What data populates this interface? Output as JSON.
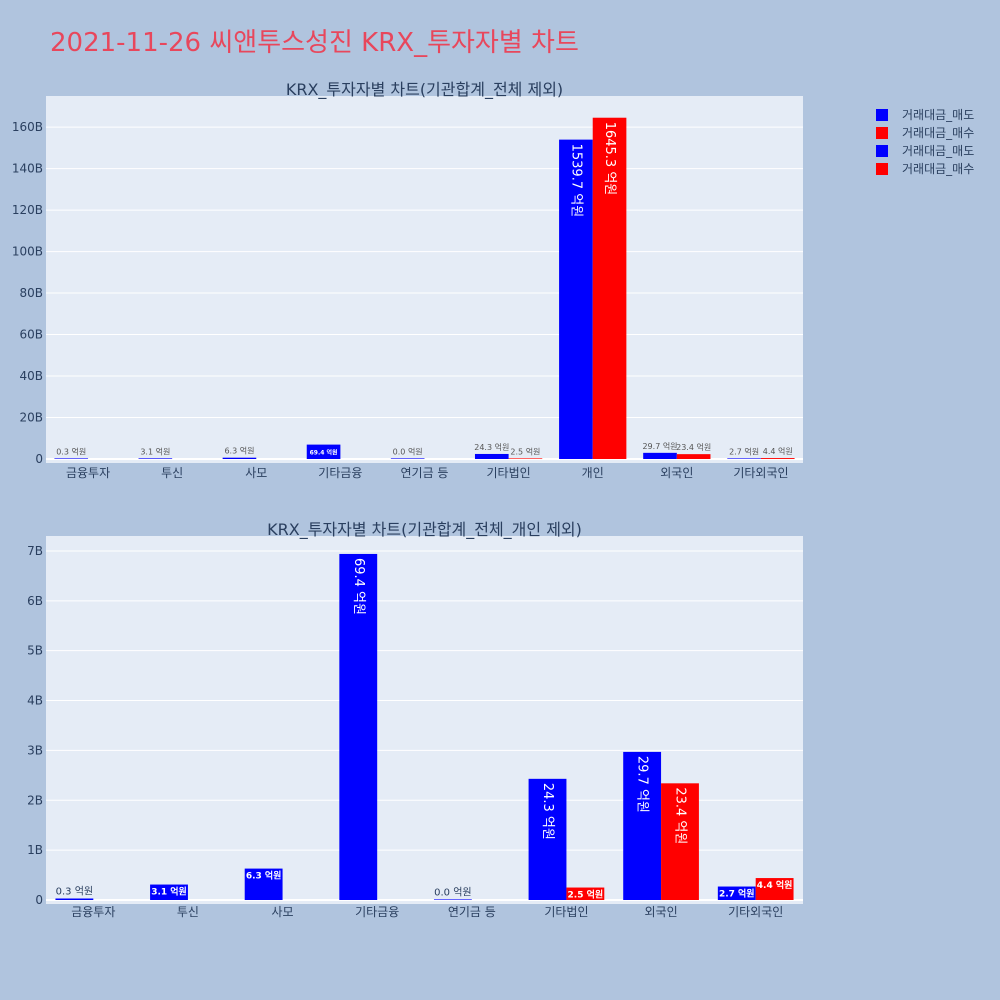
{
  "title": "2021-11-26 씨앤투스성진 KRX_투자자별 차트",
  "colors": {
    "sell": "#0000ff",
    "buy": "#ff0000",
    "plot_bg": "#e5ecf6",
    "page_bg": "#b0c4de",
    "title": "#e8475c"
  },
  "legend": {
    "position": "top-right",
    "items": [
      {
        "label": "거래대금_매도",
        "color": "#0000ff"
      },
      {
        "label": "거래대금_매수",
        "color": "#ff0000"
      },
      {
        "label": "거래대금_매도",
        "color": "#0000ff"
      },
      {
        "label": "거래대금_매수",
        "color": "#ff0000"
      }
    ]
  },
  "chart_data": [
    {
      "type": "bar",
      "title": "KRX_투자자별 차트(기관합계_전체 제외)",
      "categories": [
        "금융투자",
        "투신",
        "사모",
        "기타금융",
        "연기금 등",
        "기타법인",
        "개인",
        "외국인",
        "기타외국인"
      ],
      "ylim": [
        0,
        175000000000
      ],
      "yticks": [
        0,
        20000000000,
        40000000000,
        60000000000,
        80000000000,
        100000000000,
        120000000000,
        140000000000,
        160000000000
      ],
      "ytick_labels": [
        "0",
        "20B",
        "40B",
        "60B",
        "80B",
        "100B",
        "120B",
        "140B",
        "160B"
      ],
      "grid": true,
      "series": [
        {
          "name": "거래대금_매도",
          "color": "#0000ff",
          "values": [
            30000000,
            310000000,
            630000000,
            6940000000,
            0,
            2430000000,
            153970000000,
            2970000000,
            270000000
          ],
          "labels": [
            "0.3 억원",
            "3.1 억원",
            "6.3 억원",
            "69.4 억원",
            "0.0 억원",
            "24.3 억원",
            "1539.7 억원",
            "29.7 억원",
            "2.7 억원"
          ]
        },
        {
          "name": "거래대금_매수",
          "color": "#ff0000",
          "values": [
            null,
            null,
            null,
            null,
            null,
            250000000,
            164530000000,
            2340000000,
            440000000
          ],
          "labels": [
            null,
            null,
            null,
            null,
            null,
            "2.5 억원",
            "1645.3 억원",
            "23.4 억원",
            "4.4 억원"
          ]
        }
      ]
    },
    {
      "type": "bar",
      "title": "KRX_투자자별 차트(기관합계_전체_개인 제외)",
      "categories": [
        "금융투자",
        "투신",
        "사모",
        "기타금융",
        "연기금 등",
        "기타법인",
        "외국인",
        "기타외국인"
      ],
      "ylim": [
        0,
        7300000000
      ],
      "yticks": [
        0,
        1000000000,
        2000000000,
        3000000000,
        4000000000,
        5000000000,
        6000000000,
        7000000000
      ],
      "ytick_labels": [
        "0",
        "1B",
        "2B",
        "3B",
        "4B",
        "5B",
        "6B",
        "7B"
      ],
      "grid": true,
      "series": [
        {
          "name": "거래대금_매도",
          "color": "#0000ff",
          "values": [
            30000000,
            310000000,
            630000000,
            6940000000,
            0,
            2430000000,
            2970000000,
            270000000
          ],
          "labels": [
            "0.3 억원",
            "3.1 억원",
            "6.3 억원",
            "69.4 억원",
            "0.0 억원",
            "24.3 억원",
            "29.7 억원",
            "2.7 억원"
          ]
        },
        {
          "name": "거래대금_매수",
          "color": "#ff0000",
          "values": [
            null,
            null,
            null,
            null,
            null,
            250000000,
            2340000000,
            440000000
          ],
          "labels": [
            null,
            null,
            null,
            null,
            null,
            "2.5 억원",
            "23.4 억원",
            "4.4 억원"
          ]
        }
      ]
    }
  ]
}
